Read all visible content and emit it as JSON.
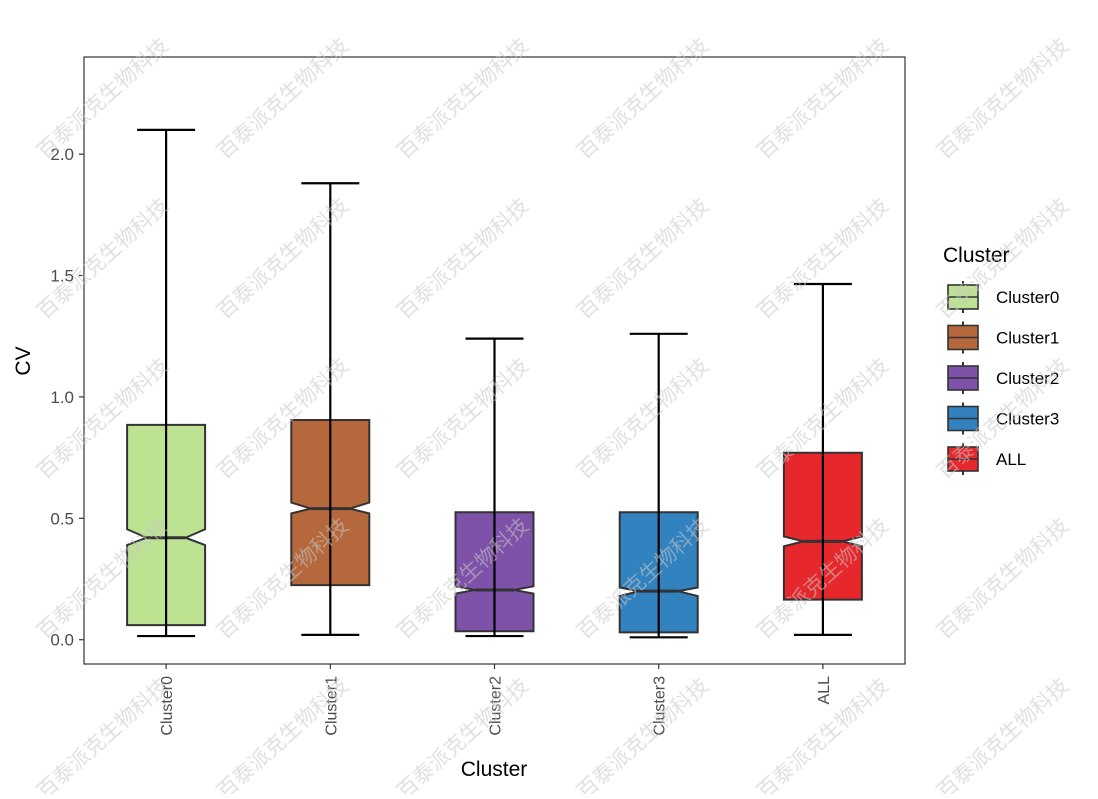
{
  "chart_data": {
    "type": "box",
    "notched": true,
    "xlabel": "Cluster",
    "ylabel": "CV",
    "ylim": [
      -0.1,
      2.4
    ],
    "yticks": [
      0.0,
      0.5,
      1.0,
      1.5,
      2.0
    ],
    "ytick_labels": [
      "0.0",
      "0.5",
      "1.0",
      "1.5",
      "2.0"
    ],
    "categories": [
      "Cluster0",
      "Cluster1",
      "Cluster2",
      "Cluster3",
      "ALL"
    ],
    "boxes": [
      {
        "name": "Cluster0",
        "min": 0.015,
        "q1": 0.06,
        "median": 0.42,
        "q3": 0.885,
        "max": 2.1,
        "notch_low": 0.39,
        "notch_high": 0.455,
        "color": "#bce292"
      },
      {
        "name": "Cluster1",
        "min": 0.02,
        "q1": 0.225,
        "median": 0.54,
        "q3": 0.905,
        "max": 1.88,
        "notch_low": 0.52,
        "notch_high": 0.565,
        "color": "#b5683c"
      },
      {
        "name": "Cluster2",
        "min": 0.015,
        "q1": 0.035,
        "median": 0.205,
        "q3": 0.525,
        "max": 1.24,
        "notch_low": 0.19,
        "notch_high": 0.22,
        "color": "#7e52a8"
      },
      {
        "name": "Cluster3",
        "min": 0.01,
        "q1": 0.03,
        "median": 0.2,
        "q3": 0.525,
        "max": 1.26,
        "notch_low": 0.18,
        "notch_high": 0.215,
        "color": "#3282c0"
      },
      {
        "name": "ALL",
        "min": 0.02,
        "q1": 0.165,
        "median": 0.405,
        "q3": 0.77,
        "max": 1.465,
        "notch_low": 0.385,
        "notch_high": 0.425,
        "color": "#e6272c"
      }
    ],
    "grid": false,
    "legend": {
      "title": "Cluster",
      "position": "right",
      "entries": [
        {
          "label": "Cluster0",
          "color": "#bce292"
        },
        {
          "label": "Cluster1",
          "color": "#b5683c"
        },
        {
          "label": "Cluster2",
          "color": "#7e52a8"
        },
        {
          "label": "Cluster3",
          "color": "#3282c0"
        },
        {
          "label": "ALL",
          "color": "#e6272c"
        }
      ]
    },
    "watermark_text": "百泰派克生物科技"
  }
}
